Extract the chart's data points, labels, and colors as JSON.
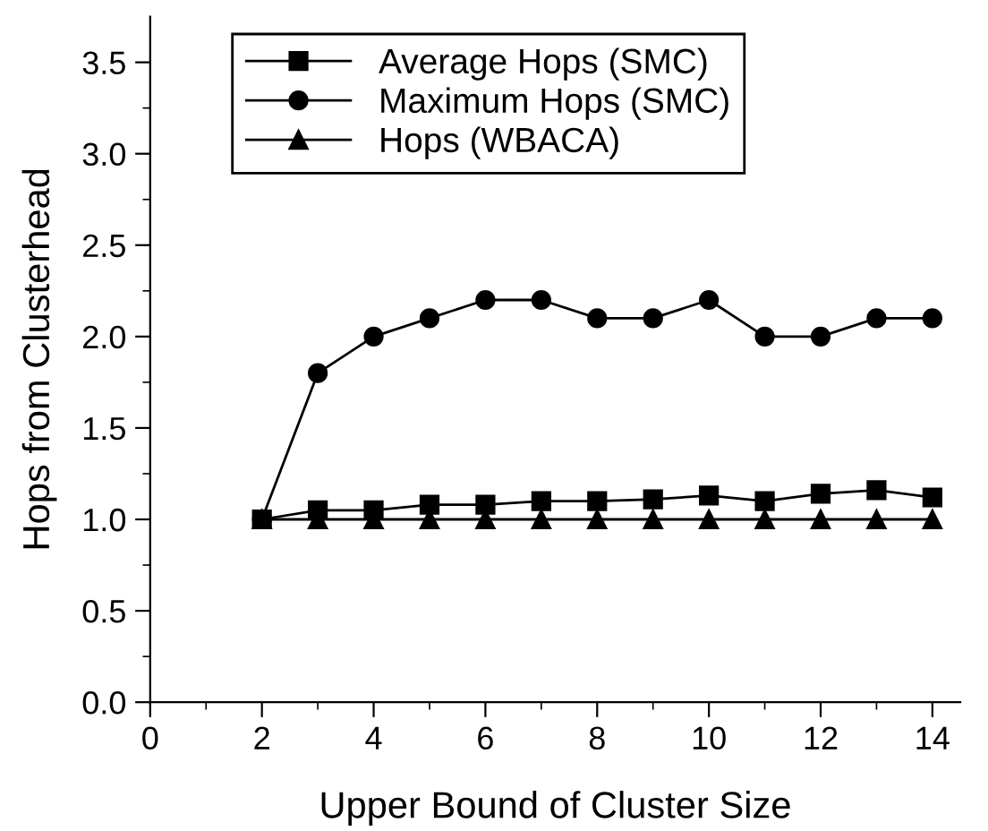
{
  "chart_data": {
    "type": "line",
    "xlabel": "Upper Bound of Cluster Size",
    "ylabel": "Hops from Clusterhead",
    "x": [
      2,
      3,
      4,
      5,
      6,
      7,
      8,
      9,
      10,
      11,
      12,
      13,
      14
    ],
    "series": [
      {
        "name": "Average Hops (SMC)",
        "color": "#000000",
        "marker": "square",
        "values": [
          1.0,
          1.05,
          1.05,
          1.08,
          1.08,
          1.1,
          1.1,
          1.11,
          1.13,
          1.1,
          1.14,
          1.16,
          1.12
        ]
      },
      {
        "name": "Maximum Hops (SMC)",
        "color": "#000000",
        "marker": "circle",
        "values": [
          1.0,
          1.8,
          2.0,
          2.1,
          2.2,
          2.2,
          2.1,
          2.1,
          2.2,
          2.0,
          2.0,
          2.1,
          2.1
        ]
      },
      {
        "name": "Hops (WBACA)",
        "color": "#000000",
        "marker": "triangle",
        "values": [
          1.0,
          1.0,
          1.0,
          1.0,
          1.0,
          1.0,
          1.0,
          1.0,
          1.0,
          1.0,
          1.0,
          1.0,
          1.0
        ]
      }
    ],
    "xlim": [
      0,
      14.5
    ],
    "ylim": [
      0,
      3.75
    ],
    "xticks": [
      0,
      {
        "value": 1,
        "label": null
      },
      2,
      {
        "value": 3,
        "label": null
      },
      4,
      {
        "value": 5,
        "label": null
      },
      6,
      {
        "value": 7,
        "label": null
      },
      8,
      {
        "value": 9,
        "label": null
      },
      10,
      {
        "value": 11,
        "label": null
      },
      12,
      {
        "value": 13,
        "label": null
      },
      14
    ],
    "yticks": [
      {
        "value": 0,
        "label": "0.0"
      },
      {
        "value": 0.25,
        "label": null
      },
      0.5,
      {
        "value": 0.75,
        "label": null
      },
      {
        "value": 1,
        "label": "1.0"
      },
      {
        "value": 1.25,
        "label": null
      },
      1.5,
      {
        "value": 1.75,
        "label": null
      },
      {
        "value": 2,
        "label": "2.0"
      },
      {
        "value": 2.25,
        "label": null
      },
      2.5,
      {
        "value": 2.75,
        "label": null
      },
      {
        "value": 3,
        "label": "3.0"
      },
      {
        "value": 3.25,
        "label": null
      },
      3.5
    ],
    "grid": false,
    "legend": "top left",
    "line_style": "solid"
  }
}
